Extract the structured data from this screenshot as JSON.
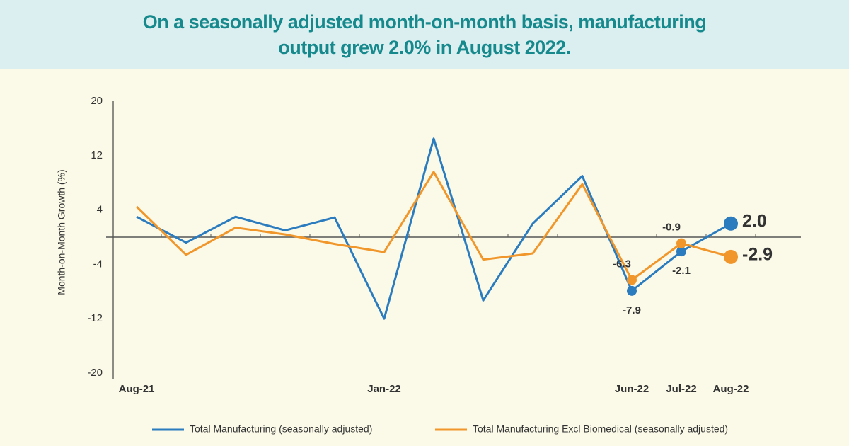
{
  "chart_data": {
    "type": "line",
    "title": "On a seasonally adjusted month-on-month basis, manufacturing output grew 2.0% in August 2022.",
    "y_label": "Month-on-Month Growth (%)",
    "categories": [
      "Aug-21",
      null,
      null,
      null,
      null,
      "Jan-22",
      null,
      null,
      null,
      null,
      "Jun-22",
      "Jul-22",
      "Aug-22"
    ],
    "series": [
      {
        "name": "Total Manufacturing (seasonally adjusted)",
        "color": "#2b7bbf",
        "values": [
          3.0,
          -0.8,
          3.0,
          1.0,
          2.9,
          -12.0,
          14.5,
          -9.3,
          2.0,
          9.0,
          -7.9,
          -2.1,
          2.0
        ],
        "value_labels": [
          null,
          null,
          null,
          null,
          null,
          null,
          null,
          null,
          null,
          null,
          "-7.9",
          "-2.1",
          "2.0"
        ]
      },
      {
        "name": "Total Manufacturing Excl Biomedical (seasonally adjusted)",
        "color": "#f0962a",
        "values": [
          4.5,
          -2.6,
          1.4,
          0.4,
          -1.0,
          -2.2,
          9.6,
          -3.3,
          -2.4,
          7.8,
          -6.3,
          -0.9,
          -2.9
        ],
        "value_labels": [
          null,
          null,
          null,
          null,
          null,
          null,
          null,
          null,
          null,
          null,
          "-6.3",
          "-0.9",
          "-2.9"
        ]
      }
    ],
    "ylim": [
      -20,
      20
    ],
    "yticks": [
      -20,
      -12,
      -4,
      4,
      12,
      20
    ],
    "legend": "bottom"
  }
}
